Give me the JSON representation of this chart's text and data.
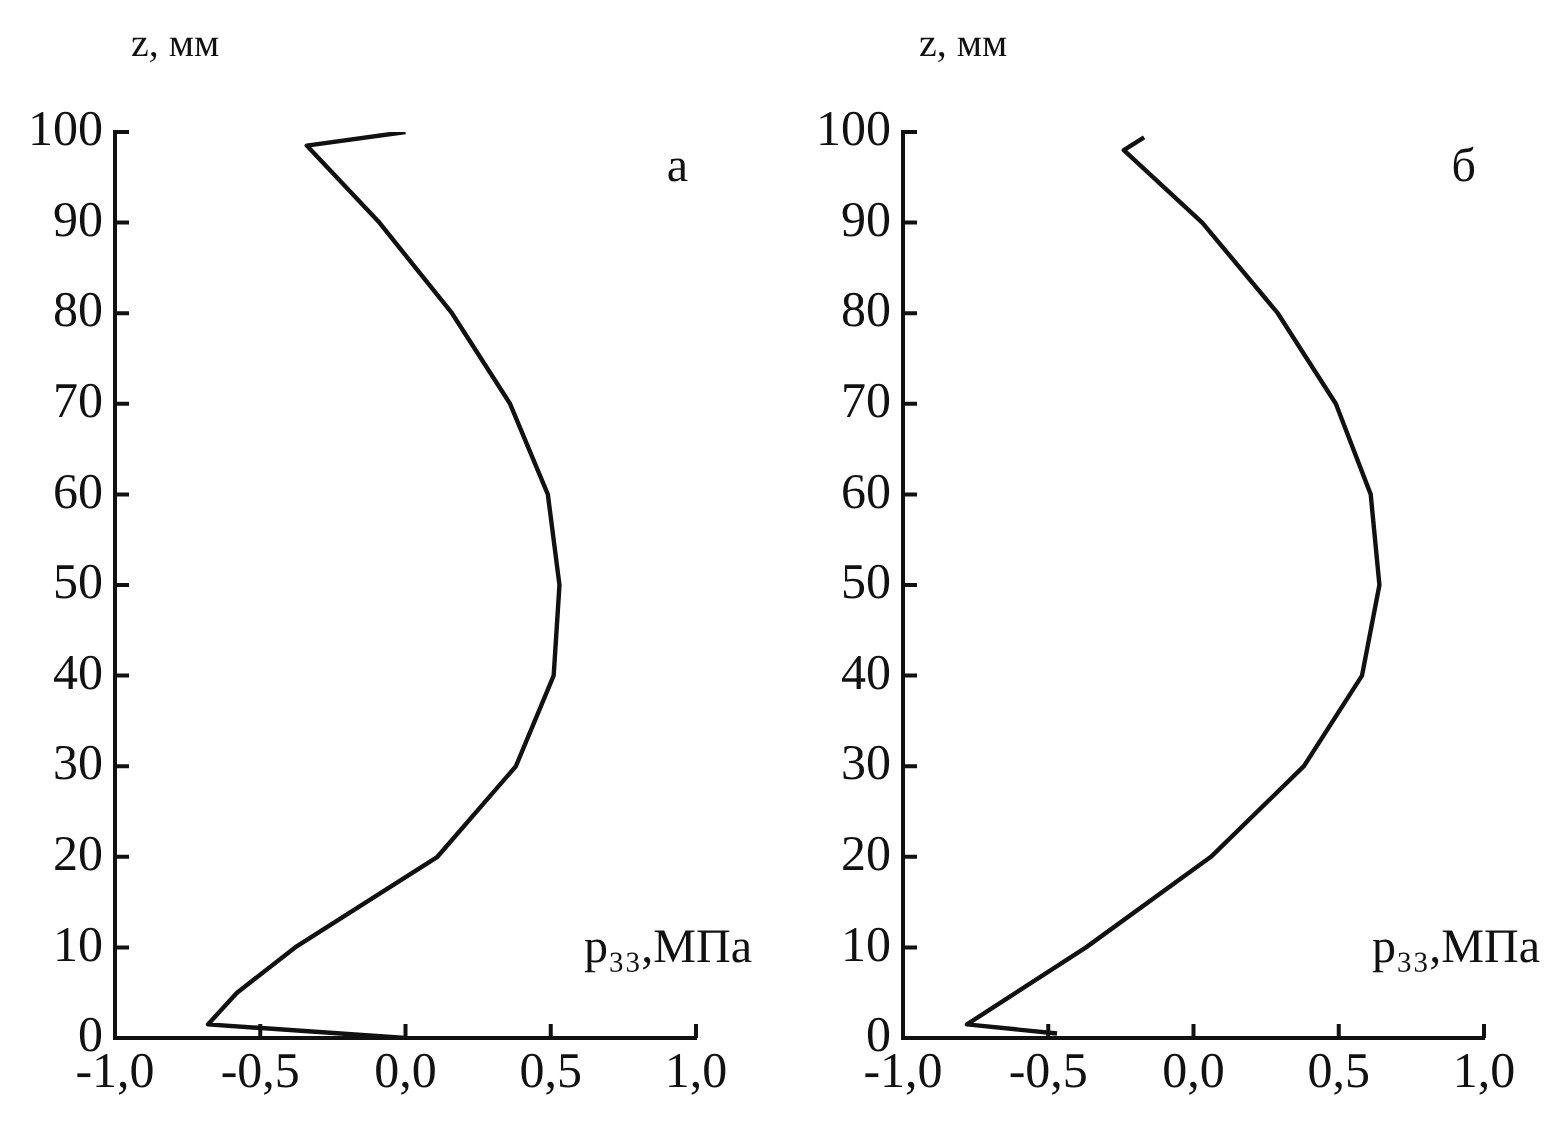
{
  "chart_data": [
    {
      "type": "line",
      "xlabel": "p₃₃,МПа",
      "ylabel": "z, мм",
      "annotations": [
        "а"
      ],
      "series": [
        {
          "color": "#111111",
          "x": [
            0.0,
            -0.68,
            -0.58,
            -0.38,
            0.11,
            0.38,
            0.51,
            0.53,
            0.49,
            0.36,
            0.16,
            -0.09,
            -0.34,
            0.0
          ],
          "values": [
            0,
            1.5,
            5,
            10,
            20,
            30,
            40,
            50,
            60,
            70,
            80,
            90,
            98.5,
            100
          ]
        }
      ],
      "xlim": [
        -1,
        1
      ],
      "xticks": [
        {
          "value": -1,
          "label": "-1,0"
        },
        {
          "value": -0.5,
          "label": "-0,5"
        },
        {
          "value": 0,
          "label": "0,0"
        },
        {
          "value": 0.5,
          "label": "0,5"
        },
        {
          "value": 1,
          "label": "1,0"
        }
      ],
      "ylim": [
        0,
        100
      ],
      "yticks": [
        0,
        10,
        20,
        30,
        40,
        50,
        60,
        70,
        80,
        90,
        100
      ],
      "grid": false,
      "legend": false,
      "marker": "none",
      "line_style": "solid"
    },
    {
      "type": "line",
      "xlabel": "p₃₃,МПа",
      "ylabel": "z, мм",
      "annotations": [
        "б"
      ],
      "series": [
        {
          "color": "#111111",
          "x": [
            -0.47,
            -0.78,
            -0.37,
            0.06,
            0.38,
            0.58,
            0.64,
            0.61,
            0.49,
            0.29,
            0.03,
            -0.24,
            -0.17
          ],
          "values": [
            0.5,
            1.5,
            10,
            20,
            30,
            40,
            50,
            60,
            70,
            80,
            90,
            98,
            99.4
          ]
        }
      ],
      "xlim": [
        -1,
        1
      ],
      "xticks": [
        {
          "value": -1,
          "label": "-1,0"
        },
        {
          "value": -0.5,
          "label": "-0,5"
        },
        {
          "value": 0,
          "label": "0,0"
        },
        {
          "value": 0.5,
          "label": "0,5"
        },
        {
          "value": 1,
          "label": "1,0"
        }
      ],
      "ylim": [
        0,
        100
      ],
      "yticks": [
        0,
        10,
        20,
        30,
        40,
        50,
        60,
        70,
        80,
        90,
        100
      ],
      "grid": false,
      "legend": false,
      "marker": "none",
      "line_style": "solid"
    }
  ]
}
